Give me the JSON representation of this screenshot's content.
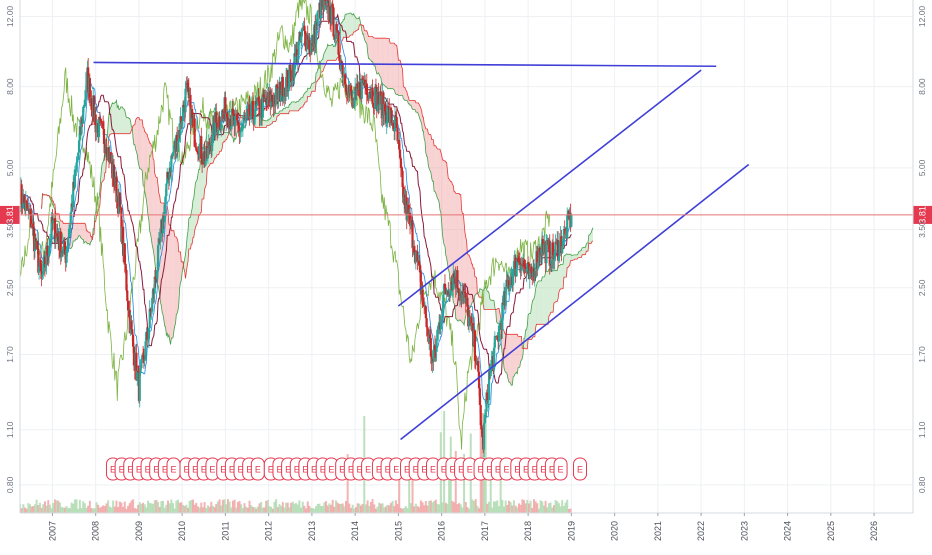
{
  "chart_data": {
    "type": "line",
    "title": "",
    "xlabel": "",
    "ylabel": "",
    "y_scale": "log",
    "ylim": [
      0.68,
      13.2
    ],
    "xlim": [
      2006.25,
      2026.9
    ],
    "x_ticks": [
      "2007",
      "2008",
      "2009",
      "2010",
      "2011",
      "2012",
      "2013",
      "2014",
      "2015",
      "2016",
      "2017",
      "2018",
      "2019",
      "2020",
      "2021",
      "2022",
      "2023",
      "2024",
      "2025",
      "2026"
    ],
    "y_ticks": [
      "12.00",
      "8.00",
      "5.00",
      "3.50",
      "2.50",
      "1.70",
      "1.10",
      "0.80"
    ],
    "current_price": 3.81,
    "current_price_label": "3.81",
    "grid": true,
    "colors": {
      "up_candle": "#26a69a",
      "down_candle": "#c62828",
      "base_line": "#8b1a3a",
      "conversion_line": "#1e88e5",
      "lagging_span": "#7cb342",
      "cloud_bull": "#a5d6a7",
      "cloud_bear": "#ef9a9a",
      "trend_lines": "#3f3fd8",
      "price_line": "#e57373",
      "earnings_marker": "#e53950"
    },
    "price_anchors": [
      [
        2006.25,
        4.3
      ],
      [
        2006.5,
        3.7
      ],
      [
        2006.75,
        2.6
      ],
      [
        2007.0,
        3.6
      ],
      [
        2007.3,
        3.0
      ],
      [
        2007.6,
        5.5
      ],
      [
        2007.8,
        8.5
      ],
      [
        2008.0,
        6.5
      ],
      [
        2008.25,
        5.8
      ],
      [
        2008.55,
        4.0
      ],
      [
        2008.8,
        2.0
      ],
      [
        2009.0,
        1.4
      ],
      [
        2009.2,
        1.9
      ],
      [
        2009.45,
        3.0
      ],
      [
        2009.7,
        5.0
      ],
      [
        2009.9,
        6.0
      ],
      [
        2010.1,
        7.8
      ],
      [
        2010.3,
        6.0
      ],
      [
        2010.55,
        5.2
      ],
      [
        2010.75,
        6.4
      ],
      [
        2011.0,
        7.0
      ],
      [
        2011.3,
        6.2
      ],
      [
        2011.6,
        6.8
      ],
      [
        2011.9,
        7.2
      ],
      [
        2012.2,
        7.6
      ],
      [
        2012.5,
        8.5
      ],
      [
        2012.8,
        11.0
      ],
      [
        2013.0,
        10.0
      ],
      [
        2013.2,
        12.8
      ],
      [
        2013.45,
        12.2
      ],
      [
        2013.7,
        9.0
      ],
      [
        2013.95,
        7.2
      ],
      [
        2014.2,
        8.3
      ],
      [
        2014.45,
        7.6
      ],
      [
        2014.7,
        7.0
      ],
      [
        2014.95,
        6.3
      ],
      [
        2015.1,
        4.3
      ],
      [
        2015.35,
        3.3
      ],
      [
        2015.55,
        2.4
      ],
      [
        2015.8,
        1.6
      ],
      [
        2016.05,
        2.4
      ],
      [
        2016.3,
        2.7
      ],
      [
        2016.55,
        2.3
      ],
      [
        2016.8,
        1.7
      ],
      [
        2016.95,
        1.0
      ],
      [
        2017.1,
        1.5
      ],
      [
        2017.3,
        1.9
      ],
      [
        2017.55,
        2.6
      ],
      [
        2017.8,
        3.0
      ],
      [
        2018.05,
        2.6
      ],
      [
        2018.3,
        3.2
      ],
      [
        2018.55,
        3.0
      ],
      [
        2018.8,
        3.3
      ],
      [
        2019.0,
        3.81
      ]
    ],
    "trend_lines": [
      {
        "from": [
          2007.95,
          9.2
        ],
        "to": [
          2022.35,
          9.0
        ]
      },
      {
        "from": [
          2015.0,
          2.25
        ],
        "to": [
          2022.0,
          8.8
        ]
      },
      {
        "from": [
          2015.05,
          1.04
        ],
        "to": [
          2023.1,
          5.1
        ]
      }
    ],
    "earnings_label": "E",
    "earnings_markers": [
      2008.4,
      2008.6,
      2008.8,
      2009.0,
      2009.2,
      2009.4,
      2009.6,
      2009.8,
      2010.1,
      2010.3,
      2010.5,
      2010.7,
      2010.95,
      2011.15,
      2011.35,
      2011.55,
      2011.75,
      2012.05,
      2012.25,
      2012.45,
      2012.65,
      2012.85,
      2013.05,
      2013.25,
      2013.45,
      2013.7,
      2013.9,
      2014.1,
      2014.3,
      2014.55,
      2014.75,
      2014.95,
      2015.2,
      2015.4,
      2015.6,
      2015.8,
      2016.05,
      2016.25,
      2016.45,
      2016.65,
      2016.9,
      2017.1,
      2017.3,
      2017.5,
      2017.75,
      2017.95,
      2018.15,
      2018.35,
      2018.55,
      2018.75,
      2019.2
    ]
  }
}
